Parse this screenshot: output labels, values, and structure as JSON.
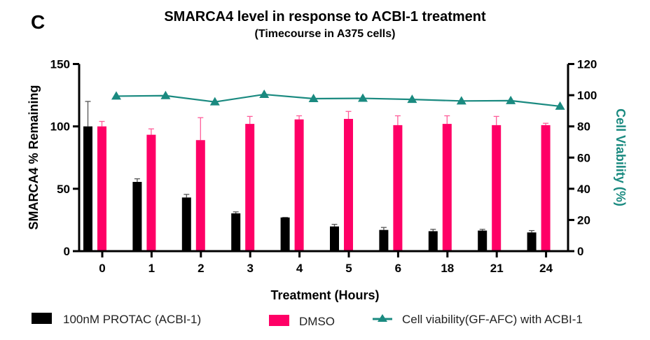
{
  "panel_label": "C",
  "chart_data": {
    "type": "bar",
    "title": "SMARCA4 level in response to ACBI-1 treatment",
    "subtitle": "(Timecourse in A375 cells)",
    "xlabel": "Treatment (Hours)",
    "ylabel": "SMARCA4 % Remaining",
    "y2label": "Cell Viability (%)",
    "categories": [
      "0",
      "1",
      "2",
      "3",
      "4",
      "5",
      "6",
      "18",
      "21",
      "24"
    ],
    "ylim": [
      0,
      150
    ],
    "yticks": [
      0,
      50,
      100,
      150
    ],
    "y2lim": [
      0,
      120
    ],
    "y2ticks": [
      0,
      20,
      40,
      60,
      80,
      100,
      120
    ],
    "grid": false,
    "legend_position": "bottom",
    "series": [
      {
        "name": "100nM PROTAC (ACBI-1)",
        "type": "bar",
        "axis": "left",
        "color": "#000000",
        "values": [
          100,
          55.5,
          43,
          30.3,
          27,
          19.8,
          17,
          16,
          16.5,
          15
        ],
        "error_upper": [
          120,
          58,
          45.5,
          31.5,
          27,
          21.5,
          19,
          17.5,
          17.5,
          16.5
        ]
      },
      {
        "name": "DMSO",
        "type": "bar",
        "axis": "left",
        "color": "#ff0066",
        "values": [
          100,
          93.3,
          89,
          102,
          105.6,
          106,
          101,
          102,
          101,
          101
        ],
        "error_upper": [
          104,
          98,
          107,
          108,
          108.5,
          112,
          108.5,
          108.5,
          108,
          102.5
        ]
      },
      {
        "name": "Cell viability(GF-AFC) with ACBI-1",
        "type": "line",
        "axis": "right",
        "color": "#1a8a80",
        "marker": "triangle",
        "values": [
          99.4,
          99.7,
          95.7,
          100.5,
          97.8,
          98,
          97.3,
          96.3,
          96.5,
          92.9
        ]
      }
    ]
  }
}
